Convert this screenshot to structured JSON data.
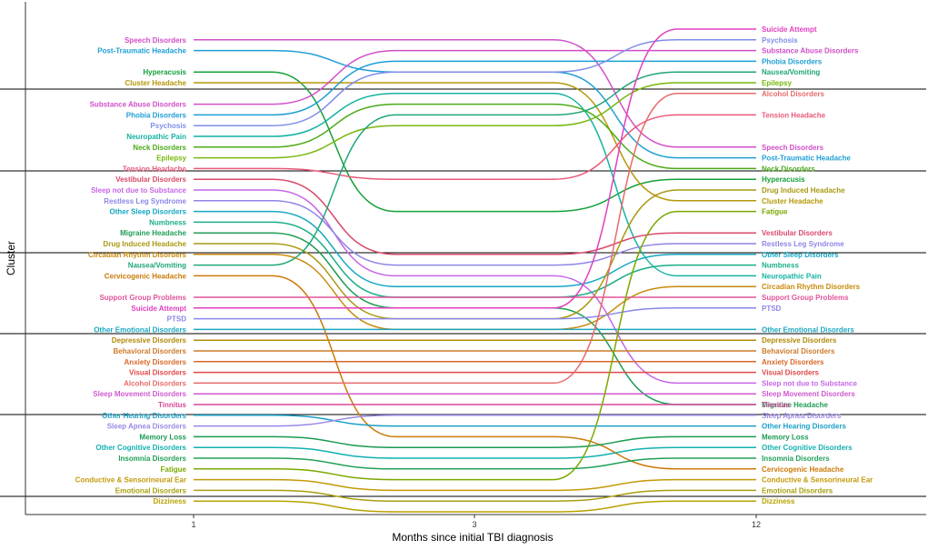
{
  "chart_data": {
    "type": "line",
    "subtype": "bump",
    "xlabel": "Months since initial TBI diagnosis",
    "ylabel": "Cluster",
    "x": [
      1,
      3,
      12
    ],
    "x_tick_labels": [
      "1",
      "3",
      "12"
    ],
    "grid": "horizontal cluster separators",
    "legend": "none",
    "y_scale": "rank order, top = 1",
    "series": [
      {
        "name": "Speech Disorders",
        "color": "#d14fc9",
        "ranks": [
          2,
          2,
          12
        ]
      },
      {
        "name": "Post-Traumatic Headache",
        "color": "#1e9ed6",
        "ranks": [
          3,
          5,
          13
        ]
      },
      {
        "name": "Hyperacusis",
        "color": "#16a03a",
        "ranks": [
          5,
          18,
          15
        ]
      },
      {
        "name": "Cluster Headache",
        "color": "#b5970a",
        "ranks": [
          6,
          6,
          17
        ]
      },
      {
        "name": "Substance Abuse Disorders",
        "color": "#d14fc9",
        "ranks": [
          8,
          3,
          3
        ]
      },
      {
        "name": "Phobia Disorders",
        "color": "#1e9ed6",
        "ranks": [
          9,
          4,
          4
        ]
      },
      {
        "name": "Psychosis",
        "color": "#7f8ee8",
        "ranks": [
          10,
          5,
          2
        ]
      },
      {
        "name": "Neuropathic Pain",
        "color": "#14b3a2",
        "ranks": [
          11,
          7,
          24
        ]
      },
      {
        "name": "Neck Disorders",
        "color": "#4caa18",
        "ranks": [
          12,
          8,
          14
        ]
      },
      {
        "name": "Epilepsy",
        "color": "#77b80f",
        "ranks": [
          13,
          10,
          6
        ]
      },
      {
        "name": "Tension Headache",
        "color": "#e85a7a",
        "ranks": [
          14,
          15,
          9
        ]
      },
      {
        "name": "Vestibular Disorders",
        "color": "#d94a6a",
        "ranks": [
          15,
          22,
          20
        ]
      },
      {
        "name": "Sleep not due to Substance",
        "color": "#c666e8",
        "ranks": [
          16,
          24,
          34
        ]
      },
      {
        "name": "Restless Leg Syndrome",
        "color": "#8e86e6",
        "ranks": [
          17,
          23,
          21
        ]
      },
      {
        "name": "Other Sleep Disorders",
        "color": "#14a7c2",
        "ranks": [
          18,
          25,
          22
        ]
      },
      {
        "name": "Numbness",
        "color": "#19ad86",
        "ranks": [
          19,
          26,
          23
        ]
      },
      {
        "name": "Migraine Headache",
        "color": "#1f9d55",
        "ranks": [
          20,
          27,
          36
        ]
      },
      {
        "name": "Drug Induced Headache",
        "color": "#a89912",
        "ranks": [
          21,
          28,
          16
        ]
      },
      {
        "name": "Circadian Rhythm Disorders",
        "color": "#c98a0c",
        "ranks": [
          22,
          29,
          25
        ]
      },
      {
        "name": "Nausea/Vomiting",
        "color": "#21a678",
        "ranks": [
          23,
          9,
          5
        ]
      },
      {
        "name": "Cervicogenic Headache",
        "color": "#cc7a0a",
        "ranks": [
          24,
          39,
          42
        ]
      },
      {
        "name": "Support Group Problems",
        "color": "#e0559a",
        "ranks": [
          26,
          26,
          26
        ]
      },
      {
        "name": "Suicide Attempt",
        "color": "#e040c0",
        "ranks": [
          27,
          27,
          1
        ]
      },
      {
        "name": "PTSD",
        "color": "#8a86e8",
        "ranks": [
          28,
          28,
          27
        ]
      },
      {
        "name": "Other Emotional Disorders",
        "color": "#1aa7c0",
        "ranks": [
          29,
          29,
          29
        ]
      },
      {
        "name": "Depressive Disorders",
        "color": "#b08a0a",
        "ranks": [
          30,
          30,
          30
        ]
      },
      {
        "name": "Behavioral Disorders",
        "color": "#cc7a2a",
        "ranks": [
          31,
          31,
          31
        ]
      },
      {
        "name": "Anxiety Disorders",
        "color": "#d8682a",
        "ranks": [
          32,
          32,
          32
        ]
      },
      {
        "name": "Visual Disorders",
        "color": "#e04848",
        "ranks": [
          33,
          33,
          33
        ]
      },
      {
        "name": "Alcohol Disorders",
        "color": "#e86a6a",
        "ranks": [
          34,
          34,
          7
        ]
      },
      {
        "name": "Sleep Movement Disorders",
        "color": "#d05ad0",
        "ranks": [
          35,
          35,
          35
        ]
      },
      {
        "name": "Tinnitus",
        "color": "#d7489a",
        "ranks": [
          36,
          36,
          36
        ]
      },
      {
        "name": "Other Hearing Disorders",
        "color": "#1aa0c8",
        "ranks": [
          37,
          38,
          38
        ]
      },
      {
        "name": "Sleep Apnea Disorders",
        "color": "#9a88e6",
        "ranks": [
          38,
          37,
          37
        ]
      },
      {
        "name": "Memory Loss",
        "color": "#1a9a50",
        "ranks": [
          39,
          40,
          39
        ]
      },
      {
        "name": "Other Cognitive Disorders",
        "color": "#14b0b0",
        "ranks": [
          40,
          41,
          40
        ]
      },
      {
        "name": "Insomnia Disorders",
        "color": "#22a05a",
        "ranks": [
          41,
          42,
          41
        ]
      },
      {
        "name": "Fatigue",
        "color": "#7aa800",
        "ranks": [
          42,
          43,
          18
        ]
      },
      {
        "name": "Conductive & Sensorineural Ear",
        "color": "#c49a0a",
        "ranks": [
          43,
          44,
          43
        ]
      },
      {
        "name": "Emotional Disorders",
        "color": "#a8a010",
        "ranks": [
          44,
          45,
          44
        ]
      },
      {
        "name": "Dizziness",
        "color": "#b8a200",
        "ranks": [
          45,
          46,
          45
        ]
      }
    ]
  }
}
